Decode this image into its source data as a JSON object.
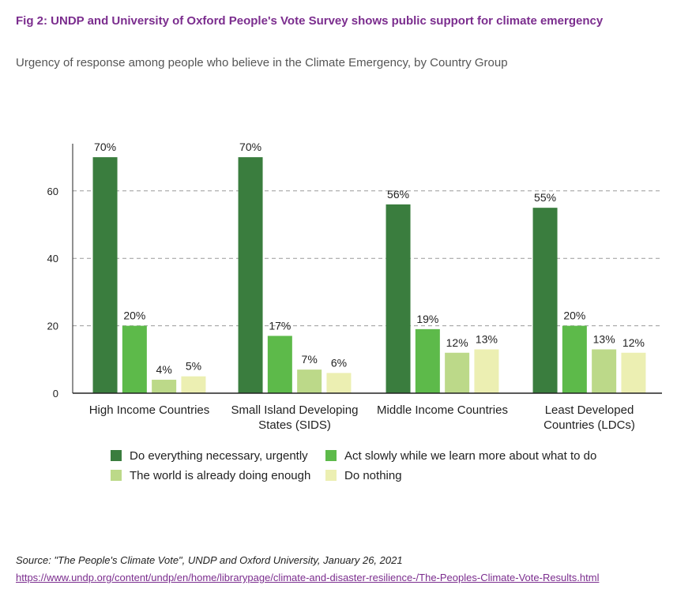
{
  "header": {
    "title": "Fig 2: UNDP and University of Oxford People's Vote Survey shows public support for climate emergency",
    "subtitle": "Urgency of response among people who believe in the Climate Emergency, by Country Group"
  },
  "chart_data": {
    "type": "bar",
    "categories": [
      [
        "High Income Countries"
      ],
      [
        "Small Island Developing",
        "States (SIDS)"
      ],
      [
        "Middle Income Countries"
      ],
      [
        "Least Developed",
        "Countries (LDCs)"
      ]
    ],
    "series": [
      {
        "name": "Do everything necessary, urgently",
        "color": "#3a7d3e",
        "values": [
          70,
          70,
          56,
          55
        ],
        "labels": [
          "70%",
          "70%",
          "56%",
          "55%"
        ]
      },
      {
        "name": "Act slowly while we learn more about what to do",
        "color": "#5dba4a",
        "values": [
          20,
          17,
          19,
          20
        ],
        "labels": [
          "20%",
          "17%",
          "19%",
          "20%"
        ]
      },
      {
        "name": "The world is already doing enough",
        "color": "#bcd989",
        "values": [
          4,
          7,
          12,
          13
        ],
        "labels": [
          "4%",
          "7%",
          "12%",
          "13%"
        ]
      },
      {
        "name": "Do nothing",
        "color": "#ecefb2",
        "values": [
          5,
          6,
          13,
          12
        ],
        "labels": [
          "5%",
          "6%",
          "13%",
          "12%"
        ]
      }
    ],
    "yticks": [
      "0",
      "20",
      "40",
      "60"
    ],
    "ylim": [
      0,
      75
    ],
    "grid": true,
    "legend_position": "bottom"
  },
  "footer": {
    "source": "Source: \"The People's Climate Vote\", UNDP and Oxford University, January 26, 2021",
    "url": "https://www.undp.org/content/undp/en/home/librarypage/climate-and-disaster-resilience-/The-Peoples-Climate-Vote-Results.html"
  }
}
